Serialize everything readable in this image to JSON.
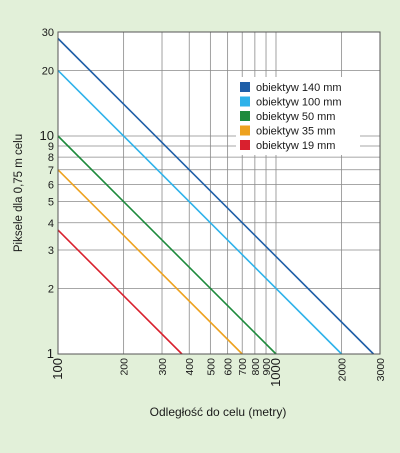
{
  "chart_data": {
    "type": "line",
    "xlabel": "Odległość do celu (metry)",
    "ylabel": "Piksele dla 0,75 m celu",
    "x_scale": "log",
    "y_scale": "log",
    "xlim": [
      100,
      3000
    ],
    "ylim": [
      1,
      30
    ],
    "x_ticks": [
      100,
      200,
      300,
      400,
      500,
      600,
      700,
      800,
      900,
      1000,
      2000,
      3000
    ],
    "x_tick_labels": [
      "100",
      "200",
      "300",
      "400",
      "500",
      "600",
      "700",
      "800",
      "900",
      "1000",
      "2000",
      "3000"
    ],
    "y_ticks": [
      1,
      2,
      3,
      4,
      5,
      6,
      7,
      8,
      9,
      10,
      20,
      30
    ],
    "y_tick_labels": [
      "1",
      "2",
      "3",
      "4",
      "5",
      "6",
      "7",
      "8",
      "9",
      "10",
      "20",
      "30"
    ],
    "grid": true,
    "legend_position": "right",
    "series": [
      {
        "name": "obiektyw 140 mm",
        "color": "#1f5fa8",
        "x": [
          100,
          2800
        ],
        "y": [
          28,
          1
        ]
      },
      {
        "name": "obiektyw 100 mm",
        "color": "#2eb2ea",
        "x": [
          100,
          2000
        ],
        "y": [
          20,
          1
        ]
      },
      {
        "name": "obiektyw 50 mm",
        "color": "#1e8a3c",
        "x": [
          100,
          1000
        ],
        "y": [
          10,
          1
        ]
      },
      {
        "name": "obiektyw 35 mm",
        "color": "#eea21f",
        "x": [
          100,
          700
        ],
        "y": [
          7,
          1
        ]
      },
      {
        "name": "obiektyw 19 mm",
        "color": "#d9202e",
        "x": [
          100,
          370
        ],
        "y": [
          3.7,
          1
        ]
      }
    ]
  }
}
